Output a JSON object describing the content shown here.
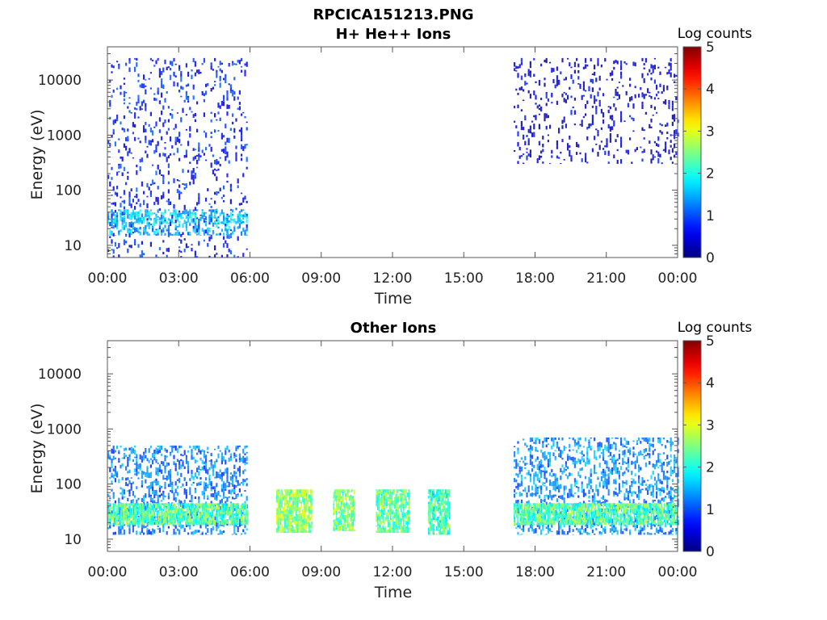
{
  "figure": {
    "title": "RPCICA151213.PNG"
  },
  "chart_data": [
    {
      "type": "heatmap",
      "title": "H+ He++ Ions",
      "xlabel": "Time",
      "ylabel": "Energy (eV)",
      "x_ticks": [
        "00:00",
        "03:00",
        "06:00",
        "09:00",
        "12:00",
        "15:00",
        "18:00",
        "21:00",
        "00:00"
      ],
      "x_range_hours": [
        0,
        24
      ],
      "y_scale": "log",
      "y_range": [
        6,
        40000
      ],
      "y_ticks": [
        10,
        100,
        1000,
        10000
      ],
      "y_tick_labels": [
        "10",
        "100",
        "1000",
        "10000"
      ],
      "colorbar": {
        "label": "Log counts",
        "range": [
          0,
          5
        ],
        "ticks": [
          "0",
          "1",
          "2",
          "3",
          "4",
          "5"
        ],
        "colormap": "jet"
      },
      "regions": [
        {
          "t_start": 0.0,
          "t_end": 5.9,
          "e_min": 6,
          "e_max": 25000,
          "level": 0.7
        },
        {
          "t_start": 0.0,
          "t_end": 5.9,
          "e_min": 15,
          "e_max": 45,
          "level": 1.5
        },
        {
          "t_start": 0.0,
          "t_end": 5.9,
          "e_min": 25,
          "e_max": 40,
          "level": 1.8
        },
        {
          "t_start": 17.1,
          "t_end": 24.0,
          "e_min": 300,
          "e_max": 25000,
          "level": 0.4
        }
      ]
    },
    {
      "type": "heatmap",
      "title": "Other Ions",
      "xlabel": "Time",
      "ylabel": "Energy (eV)",
      "x_ticks": [
        "00:00",
        "03:00",
        "06:00",
        "09:00",
        "12:00",
        "15:00",
        "18:00",
        "21:00",
        "00:00"
      ],
      "x_range_hours": [
        0,
        24
      ],
      "y_scale": "log",
      "y_range": [
        6,
        40000
      ],
      "y_ticks": [
        10,
        100,
        1000,
        10000
      ],
      "y_tick_labels": [
        "10",
        "100",
        "1000",
        "10000"
      ],
      "colorbar": {
        "label": "Log counts",
        "range": [
          0,
          5
        ],
        "ticks": [
          "0",
          "1",
          "2",
          "3",
          "4",
          "5"
        ],
        "colormap": "jet"
      },
      "regions": [
        {
          "t_start": 0.0,
          "t_end": 5.9,
          "e_min": 12,
          "e_max": 500,
          "level": 1.2
        },
        {
          "t_start": 0.0,
          "t_end": 5.9,
          "e_min": 18,
          "e_max": 45,
          "level": 2.3
        },
        {
          "t_start": 7.1,
          "t_end": 8.6,
          "e_min": 13,
          "e_max": 80,
          "level": 2.6
        },
        {
          "t_start": 9.5,
          "t_end": 10.4,
          "e_min": 14,
          "e_max": 80,
          "level": 2.5
        },
        {
          "t_start": 11.3,
          "t_end": 12.7,
          "e_min": 13,
          "e_max": 80,
          "level": 2.4
        },
        {
          "t_start": 13.5,
          "t_end": 14.4,
          "e_min": 12,
          "e_max": 80,
          "level": 2.2
        },
        {
          "t_start": 17.1,
          "t_end": 24.0,
          "e_min": 12,
          "e_max": 700,
          "level": 1.3
        },
        {
          "t_start": 17.1,
          "t_end": 24.0,
          "e_min": 18,
          "e_max": 45,
          "level": 2.3
        }
      ]
    }
  ]
}
